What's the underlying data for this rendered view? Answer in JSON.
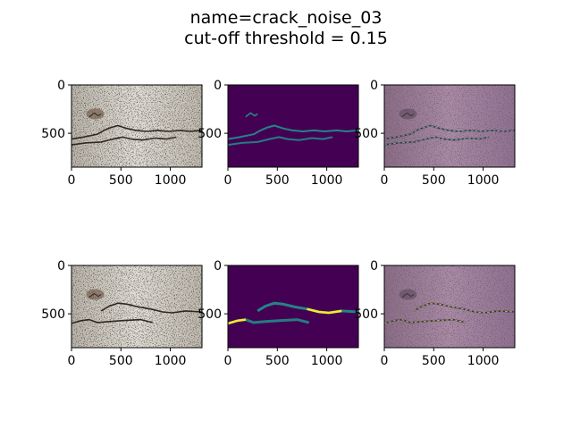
{
  "figure": {
    "title_line1": "name=crack_noise_03",
    "title_line2": "cut-off threshold = 0.15"
  },
  "chart_data": {
    "type": "heatmap",
    "grid": "2x3",
    "xlim": [
      0,
      1320
    ],
    "ylim": [
      850,
      0
    ],
    "xticks": [
      0,
      500,
      1000
    ],
    "yticks": [
      0,
      500
    ],
    "panels": [
      {
        "row": 0,
        "col": 0,
        "kind": "rgb-image"
      },
      {
        "row": 0,
        "col": 1,
        "kind": "heatmap",
        "colormap": "viridis"
      },
      {
        "row": 0,
        "col": 2,
        "kind": "overlay"
      },
      {
        "row": 1,
        "col": 0,
        "kind": "rgb-image"
      },
      {
        "row": 1,
        "col": 1,
        "kind": "heatmap",
        "colormap": "viridis"
      },
      {
        "row": 1,
        "col": 2,
        "kind": "overlay"
      }
    ],
    "colors": {
      "viridis_low": "#440154",
      "viridis_mid": "#21918c",
      "viridis_high": "#fde725",
      "concrete": "#c8c4bc",
      "overlay_tint": "#9a7a96"
    }
  }
}
